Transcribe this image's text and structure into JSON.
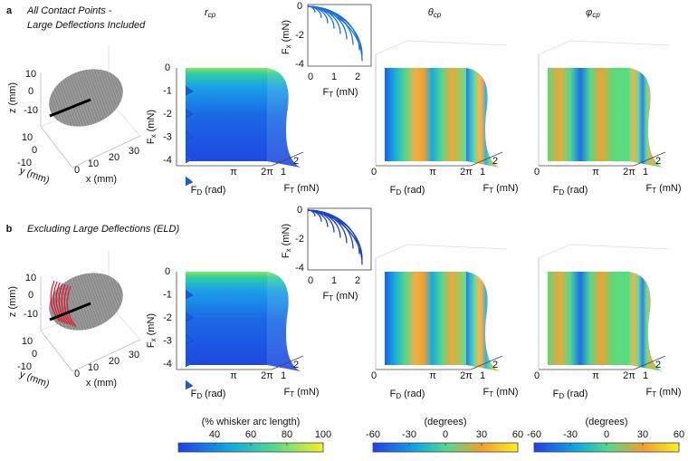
{
  "rows": [
    {
      "letter": "a",
      "subtitle": [
        "All Contact Points -",
        "Large Deflections Included"
      ]
    },
    {
      "letter": "b",
      "subtitle": [
        "Excluding Large Deflections (ELD)"
      ]
    }
  ],
  "column_titles": [
    {
      "main": "r",
      "sub": "cp"
    },
    {
      "main": "θ",
      "sub": "cp"
    },
    {
      "main": "φ",
      "sub": "cp"
    }
  ],
  "ellipsoid_axes": {
    "z_label": "z (mm)",
    "y_label": "y (mm)",
    "x_label": "x (mm)",
    "z_ticks": [
      "10",
      "0",
      "-10"
    ],
    "y_ticks": [
      "10",
      "0",
      "-10"
    ],
    "x_ticks": [
      "0",
      "10",
      "20",
      "30"
    ]
  },
  "surface_axes": {
    "fx_label": {
      "main": "F",
      "sub": "x",
      "unit": "(mN)"
    },
    "fx_ticks": [
      "0",
      "-1",
      "-2",
      "-3",
      "-4"
    ],
    "fd_label": {
      "main": "F",
      "sub": "D",
      "unit": "(rad)"
    },
    "fd_ticks": [
      "0",
      "π",
      "2π"
    ],
    "ft_label": {
      "main": "F",
      "sub": "T",
      "unit": "(mN)"
    },
    "ft_ticks": [
      "1",
      "2"
    ]
  },
  "inset_axes": {
    "y_label": {
      "main": "F",
      "sub": "x",
      "unit": "(mN)"
    },
    "y_ticks": [
      "0",
      "-2",
      "-4"
    ],
    "x_label": {
      "main": "F",
      "sub": "T",
      "unit": "(mN)"
    },
    "x_ticks": [
      "0",
      "1",
      "2"
    ]
  },
  "colorbars": [
    {
      "label": "(% whisker arc length)",
      "ticks": [
        "40",
        "60",
        "80",
        "100"
      ]
    },
    {
      "label": "(degrees)",
      "ticks": [
        "-60",
        "-30",
        "0",
        "30",
        "60"
      ]
    },
    {
      "label": "(degrees)",
      "ticks": [
        "-60",
        "-30",
        "0",
        "30",
        "60"
      ]
    }
  ]
}
